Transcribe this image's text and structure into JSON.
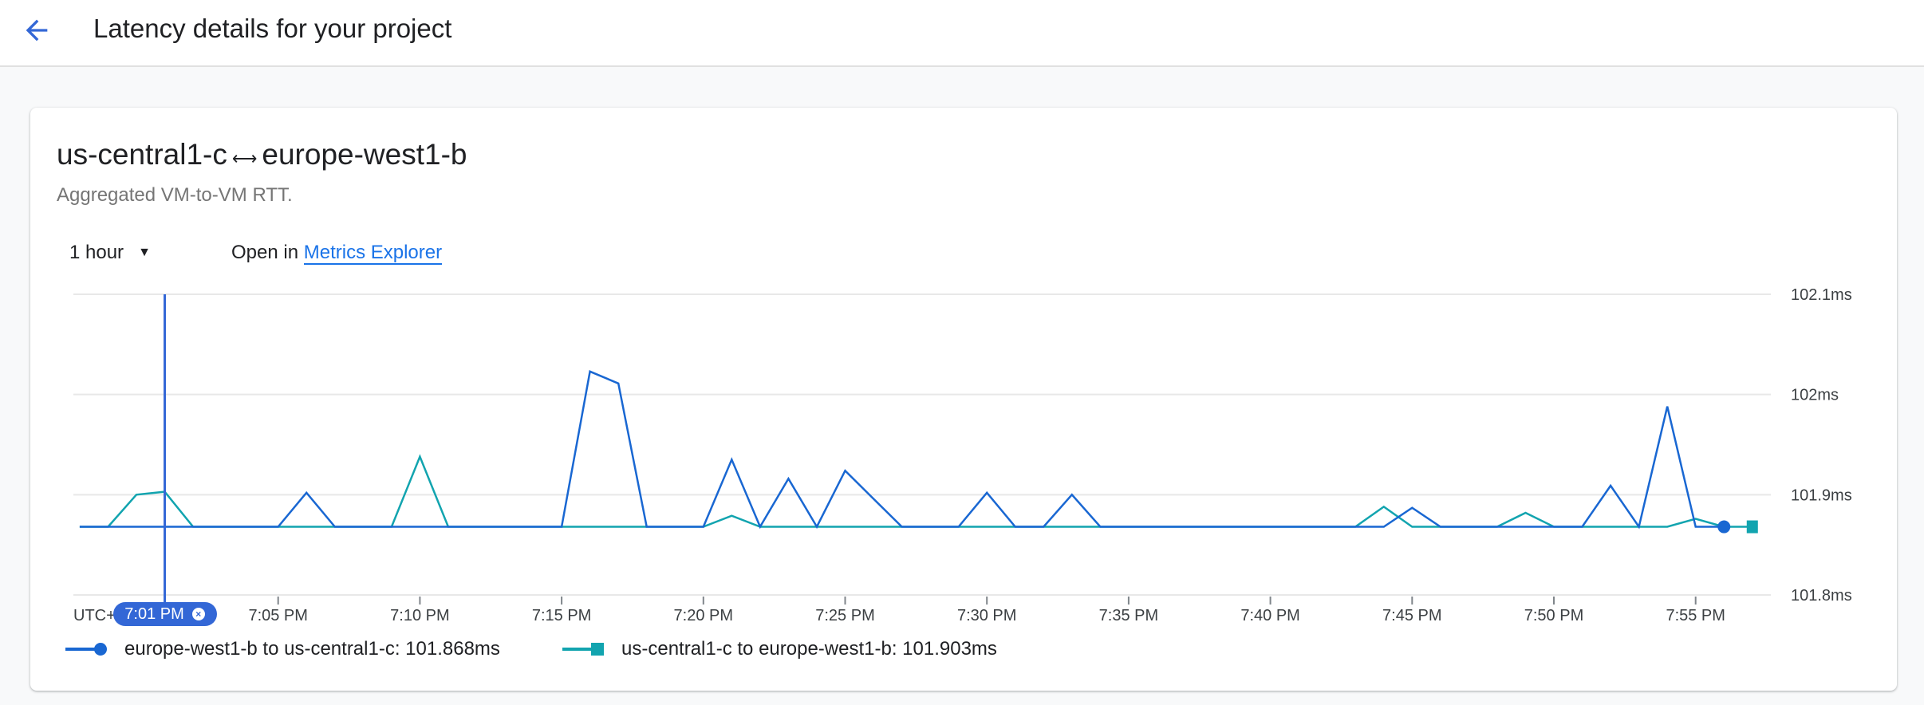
{
  "header": {
    "title": "Latency details for your project",
    "back_icon": "arrow-back-icon"
  },
  "card": {
    "title_left": "us-central1-c",
    "title_arrow": "⟷",
    "title_right": "europe-west1-b",
    "subtitle": "Aggregated VM-to-VM RTT.",
    "range_label": "1 hour",
    "open_in": "Open in",
    "metrics_link": "Metrics Explorer"
  },
  "cursor": {
    "label": "7:01 PM",
    "close": "×",
    "time": "7:01"
  },
  "chart_data": {
    "type": "line",
    "x_unit": "time (PM)",
    "timezone_label": "UTC+",
    "x_range": [
      "6:58",
      "7:57"
    ],
    "x_ticks": [
      "7:05 PM",
      "7:10 PM",
      "7:15 PM",
      "7:20 PM",
      "7:25 PM",
      "7:30 PM",
      "7:35 PM",
      "7:40 PM",
      "7:45 PM",
      "7:50 PM",
      "7:55 PM"
    ],
    "ylim": [
      101.8,
      102.1
    ],
    "y_ticks": [
      {
        "v": 102.1,
        "label": "102.1ms"
      },
      {
        "v": 102.0,
        "label": "102ms"
      },
      {
        "v": 101.9,
        "label": "101.9ms"
      },
      {
        "v": 101.8,
        "label": "101.8ms"
      }
    ],
    "y_axis_position": "right",
    "grid": true,
    "legend_position": "bottom-left",
    "series": [
      {
        "name": "europe-west1-b to us-central1-c",
        "legend_value": "101.868ms",
        "color": "#1967d2",
        "marker": "circle",
        "points": [
          [
            "6:58",
            101.868
          ],
          [
            "7:05",
            101.868
          ],
          [
            "7:06",
            101.902
          ],
          [
            "7:07",
            101.868
          ],
          [
            "7:15",
            101.868
          ],
          [
            "7:16",
            102.023
          ],
          [
            "7:17",
            102.011
          ],
          [
            "7:18",
            101.868
          ],
          [
            "7:20",
            101.868
          ],
          [
            "7:21",
            101.935
          ],
          [
            "7:22",
            101.868
          ],
          [
            "7:23",
            101.916
          ],
          [
            "7:24",
            101.868
          ],
          [
            "7:25",
            101.924
          ],
          [
            "7:26",
            101.896
          ],
          [
            "7:27",
            101.868
          ],
          [
            "7:29",
            101.868
          ],
          [
            "7:30",
            101.902
          ],
          [
            "7:31",
            101.868
          ],
          [
            "7:32",
            101.868
          ],
          [
            "7:33",
            101.9
          ],
          [
            "7:34",
            101.868
          ],
          [
            "7:44",
            101.868
          ],
          [
            "7:45",
            101.887
          ],
          [
            "7:46",
            101.868
          ],
          [
            "7:51",
            101.868
          ],
          [
            "7:52",
            101.909
          ],
          [
            "7:53",
            101.868
          ],
          [
            "7:54",
            101.988
          ],
          [
            "7:55",
            101.868
          ],
          [
            "7:56",
            101.868
          ]
        ]
      },
      {
        "name": "us-central1-c to europe-west1-b",
        "legend_value": "101.903ms",
        "color": "#12a4af",
        "marker": "square",
        "points": [
          [
            "6:58",
            101.868
          ],
          [
            "6:59",
            101.868
          ],
          [
            "7:00",
            101.9
          ],
          [
            "7:01",
            101.903
          ],
          [
            "7:02",
            101.868
          ],
          [
            "7:09",
            101.868
          ],
          [
            "7:10",
            101.938
          ],
          [
            "7:11",
            101.868
          ],
          [
            "7:20",
            101.868
          ],
          [
            "7:21",
            101.879
          ],
          [
            "7:22",
            101.868
          ],
          [
            "7:43",
            101.868
          ],
          [
            "7:44",
            101.888
          ],
          [
            "7:45",
            101.868
          ],
          [
            "7:48",
            101.868
          ],
          [
            "7:49",
            101.882
          ],
          [
            "7:50",
            101.868
          ],
          [
            "7:54",
            101.868
          ],
          [
            "7:55",
            101.876
          ],
          [
            "7:56",
            101.868
          ],
          [
            "7:57",
            101.868
          ]
        ]
      }
    ]
  }
}
